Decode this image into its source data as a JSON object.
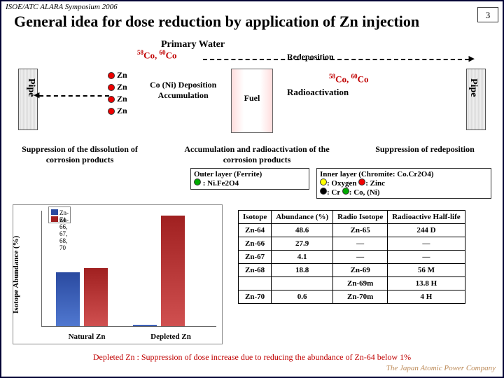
{
  "header": {
    "symposium": "ISOE/ATC ALARA Symposium 2006",
    "page": "3"
  },
  "title": "General idea for dose reduction by application of Zn injection",
  "diagram": {
    "pipe": "Pipe",
    "primary_water": "Primary Water",
    "co_label": "58Co, 60Co",
    "redeposition": "Redeposition",
    "zn": "Zn",
    "co_ni": "Co (Ni)",
    "deposition": "Deposition",
    "accumulation": "Accumulation",
    "fuel": "Fuel",
    "radioactivation": "Radioactivation",
    "sup_dissolution": "Suppression of the dissolution of corrosion products",
    "acc_radio": "Accumulation and radioactivation of the corrosion products",
    "sup_redep": "Suppression of redeposition"
  },
  "layers": {
    "outer": "Outer layer (Ferrite)",
    "outer_sub": ": Ni.Fe2O4",
    "inner": "Inner layer (Chromite: Co.Cr2O4)",
    "oxygen": ": Oxygen",
    "zinc": ": Zinc",
    "cr": ": Cr",
    "coni": ": Co, (Ni)"
  },
  "chart": {
    "ylabel": "Isotope Abundance (%)",
    "xlabels": [
      "Natural Zn",
      "Depleted Zn"
    ],
    "legend": [
      "Zn-64",
      "Zn-66, 67, 68, 70"
    ],
    "bars": [
      {
        "group": 0,
        "series": 0,
        "value": 48,
        "color": "blue"
      },
      {
        "group": 0,
        "series": 1,
        "value": 52,
        "color": "red"
      },
      {
        "group": 1,
        "series": 0,
        "value": 1,
        "color": "blue"
      },
      {
        "group": 1,
        "series": 1,
        "value": 99,
        "color": "red"
      }
    ],
    "ymax": 100
  },
  "table": {
    "headers": [
      "Isotope",
      "Abundance (%)",
      "Radio Isotope",
      "Radioactive Half-life"
    ],
    "rows": [
      [
        "Zn-64",
        "48.6",
        "Zn-65",
        "244 D"
      ],
      [
        "Zn-66",
        "27.9",
        "—",
        "—"
      ],
      [
        "Zn-67",
        "4.1",
        "—",
        "—"
      ],
      [
        "Zn-68",
        "18.8",
        "Zn-69",
        "56 M"
      ],
      [
        "",
        "",
        "Zn-69m",
        "13.8 H"
      ],
      [
        "Zn-70",
        "0.6",
        "Zn-70m",
        "4 H"
      ]
    ]
  },
  "footer": "Depleted Zn : Suppression of dose increase due to reducing the abundance of Zn-64 below 1%",
  "company": "The Japan Atomic Power Company"
}
